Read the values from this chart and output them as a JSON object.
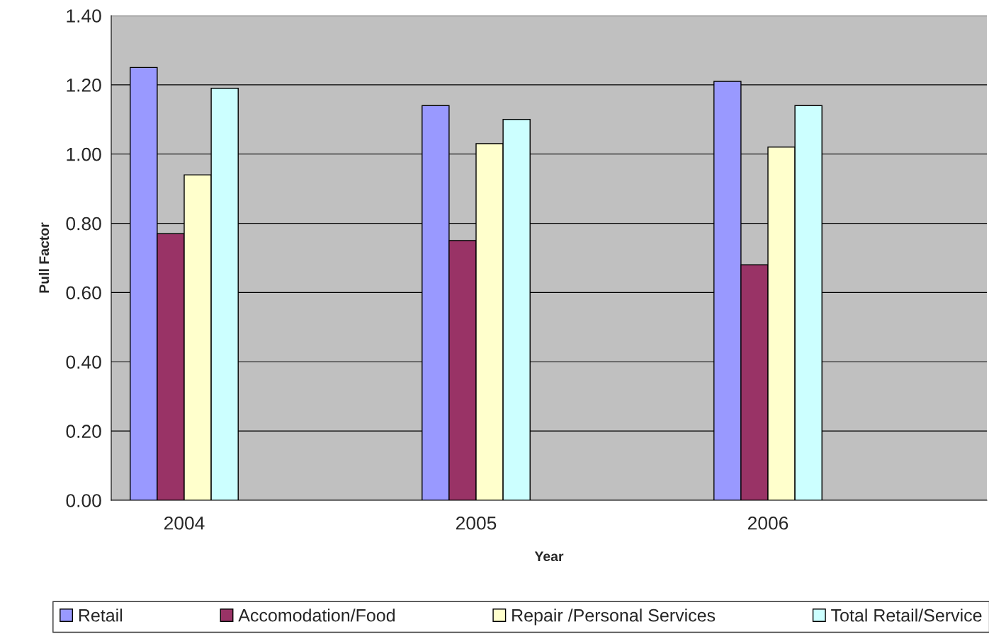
{
  "chart_data": {
    "type": "bar",
    "xlabel": "Year",
    "ylabel": "Pull Factor",
    "categories": [
      "2004",
      null,
      "2005",
      null,
      "2006",
      null
    ],
    "series": [
      {
        "name": "Retail",
        "color": "#9999ff",
        "values": [
          1.25,
          null,
          1.14,
          null,
          1.21,
          null
        ]
      },
      {
        "name": "Accomodation/Food",
        "color": "#993366",
        "values": [
          0.77,
          null,
          0.75,
          null,
          0.68,
          null
        ]
      },
      {
        "name": "Repair /Personal Services",
        "color": "#ffffcc",
        "values": [
          0.94,
          null,
          1.03,
          null,
          1.02,
          null
        ]
      },
      {
        "name": "Total Retail/Service",
        "color": "#ccffff",
        "values": [
          1.19,
          null,
          1.1,
          null,
          1.14,
          null
        ]
      }
    ],
    "ylim": [
      0,
      1.4
    ],
    "yticks": [
      {
        "value": 0,
        "label": "0.00"
      },
      {
        "value": 0.2,
        "label": "0.20"
      },
      {
        "value": 0.4,
        "label": "0.40"
      },
      {
        "value": 0.6,
        "label": "0.60"
      },
      {
        "value": 0.8,
        "label": "0.80"
      },
      {
        "value": 1.0,
        "label": "1.00"
      },
      {
        "value": 1.2,
        "label": "1.20"
      },
      {
        "value": 1.4,
        "label": "1.40"
      }
    ],
    "grid": "y",
    "legend": "bottom"
  }
}
